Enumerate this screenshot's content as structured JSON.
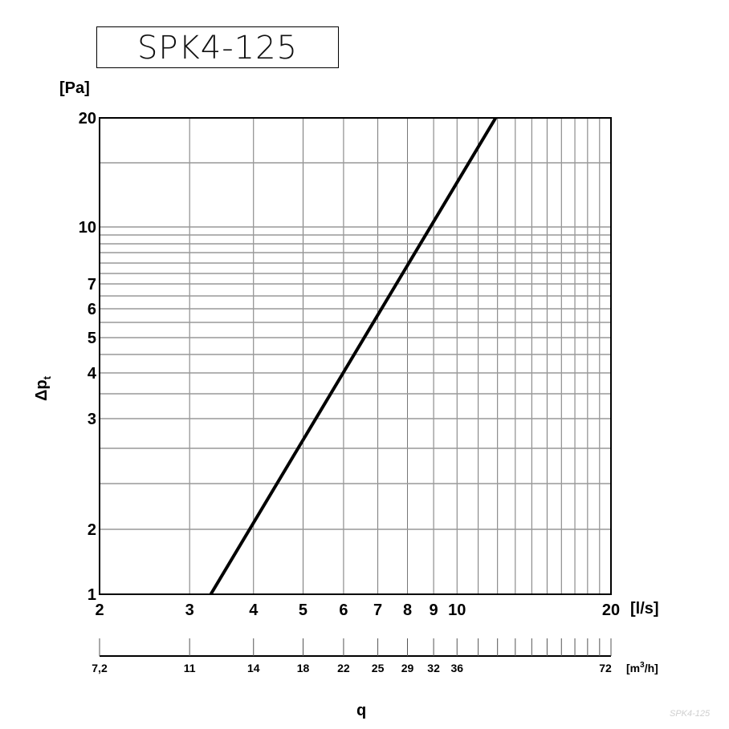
{
  "title": "SPK4-125",
  "watermark": "SPK4-125",
  "chart_data": {
    "type": "line",
    "title": "SPK4-125",
    "xlabel": "q",
    "ylabel": "Δp",
    "ylabel_subscript": "t",
    "y_unit": "[Pa]",
    "x_unit": "[l/s]",
    "x2_unit_prefix": "[m",
    "x2_unit_sup": "3",
    "x2_unit_suffix": "/h]",
    "x_scale": "log",
    "y_scale": "log",
    "xlim": [
      2,
      20
    ],
    "ylim": [
      1,
      20
    ],
    "grid": true,
    "x_ticks": [
      "2",
      "3",
      "4",
      "5",
      "6",
      "7",
      "8",
      "9",
      "10",
      "20"
    ],
    "x_tick_values": [
      2,
      3,
      4,
      5,
      6,
      7,
      8,
      9,
      10,
      20
    ],
    "x2_ticks": [
      "7,2",
      "11",
      "14",
      "18",
      "22",
      "25",
      "29",
      "32",
      "36",
      "72"
    ],
    "y_ticks": [
      "1",
      "2",
      "3",
      "4",
      "5",
      "6",
      "7",
      "10",
      "20"
    ],
    "y_tick_values": [
      1,
      2,
      3,
      4,
      5,
      6,
      7,
      10,
      20
    ],
    "series": [
      {
        "x": [
          3.3,
          11.9
        ],
        "y": [
          1,
          20
        ],
        "color": "#000000"
      }
    ]
  }
}
